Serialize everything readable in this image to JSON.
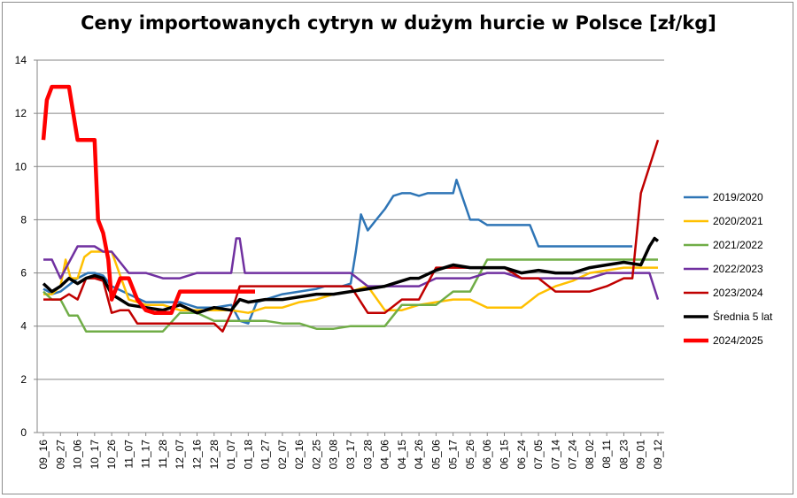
{
  "chart_data": {
    "type": "line",
    "title": "Ceny importowanych cytryn w dużym hurcie w Polsce [zł/kg]",
    "xlabel": "",
    "ylabel": "",
    "ylim": [
      0,
      14
    ],
    "yticks": [
      0,
      2,
      4,
      6,
      8,
      10,
      12,
      14
    ],
    "grid": true,
    "legend_position": "right",
    "categories": [
      "09_16",
      "09_27",
      "10_06",
      "10_17",
      "10_26",
      "11_07",
      "11_17",
      "11_28",
      "12_07",
      "12_16",
      "12_28",
      "01_07",
      "01_18",
      "01_27",
      "02_07",
      "02_16",
      "02_25",
      "03_08",
      "03_17",
      "03_28",
      "04_06",
      "04_15",
      "04_26",
      "05_06",
      "05_17",
      "05_26",
      "06_06",
      "06_15",
      "06_24",
      "07_05",
      "07_14",
      "07_24",
      "08_02",
      "08_11",
      "08_23",
      "09_01",
      "09_12"
    ],
    "series": [
      {
        "name": "2019/2020",
        "color": "#2e75b6",
        "width": 2.5,
        "x": [
          0,
          0.3,
          0.5,
          1,
          2,
          2.6,
          3,
          3.5,
          4,
          5,
          6,
          7,
          8,
          9,
          10,
          11,
          11.5,
          12,
          12.5,
          13,
          14,
          15,
          16,
          16.5,
          17,
          17.5,
          18,
          18.3,
          18.6,
          19,
          19.5,
          20,
          20.5,
          21,
          21.5,
          22,
          22.5,
          23,
          23.5,
          24,
          24.2,
          25,
          25.5,
          26,
          27,
          28,
          28.5,
          29,
          30,
          31,
          32,
          33,
          34,
          34.5
        ],
        "y": [
          5.4,
          5.3,
          5.2,
          5.3,
          5.8,
          6.0,
          6.0,
          5.9,
          5.5,
          5.2,
          4.9,
          4.9,
          4.9,
          4.7,
          4.7,
          4.8,
          4.2,
          4.1,
          4.9,
          5.0,
          5.2,
          5.3,
          5.4,
          5.5,
          5.5,
          5.5,
          5.6,
          6.8,
          8.2,
          7.6,
          8.0,
          8.4,
          8.9,
          9.0,
          9.0,
          8.9,
          9.0,
          9.0,
          9.0,
          9.0,
          9.5,
          8.0,
          8.0,
          7.8,
          7.8,
          7.8,
          7.8,
          7.0,
          7.0,
          7.0,
          7.0,
          7.0,
          7.0,
          7.0
        ]
      },
      {
        "name": "2020/2021",
        "color": "#ffc000",
        "width": 2.5,
        "x": [
          0,
          0.5,
          1,
          1.3,
          1.6,
          2,
          2.4,
          2.8,
          3,
          4,
          5,
          6,
          7,
          8,
          9,
          10,
          11,
          12,
          13,
          14,
          15,
          16,
          17,
          18,
          19,
          20,
          21,
          22,
          23,
          24,
          25,
          26,
          27,
          28,
          29,
          30,
          31,
          32,
          33,
          34,
          35,
          36
        ],
        "y": [
          5.2,
          5.2,
          5.5,
          6.5,
          5.8,
          5.8,
          6.6,
          6.8,
          6.8,
          6.8,
          5.0,
          4.8,
          4.8,
          4.6,
          4.6,
          4.6,
          4.6,
          4.5,
          4.7,
          4.7,
          4.9,
          5.0,
          5.2,
          5.3,
          5.5,
          4.6,
          4.6,
          4.8,
          4.9,
          5.0,
          5.0,
          4.7,
          4.7,
          4.7,
          5.2,
          5.5,
          5.7,
          6.0,
          6.1,
          6.2,
          6.2,
          6.2
        ]
      },
      {
        "name": "2021/2022",
        "color": "#70ad47",
        "width": 2.5,
        "x": [
          0,
          0.5,
          1,
          1.5,
          2,
          2.5,
          3,
          4,
          5,
          6,
          7,
          8,
          9,
          10,
          11,
          12,
          13,
          14,
          15,
          16,
          17,
          18,
          19,
          20,
          21,
          22,
          23,
          24,
          25,
          26,
          27,
          28,
          29,
          30,
          31,
          32,
          33,
          34,
          35,
          36
        ],
        "y": [
          5.3,
          5.0,
          5.0,
          4.4,
          4.4,
          3.8,
          3.8,
          3.8,
          3.8,
          3.8,
          3.8,
          4.5,
          4.5,
          4.2,
          4.2,
          4.2,
          4.2,
          4.1,
          4.1,
          3.9,
          3.9,
          4.0,
          4.0,
          4.0,
          4.8,
          4.8,
          4.8,
          5.3,
          5.3,
          6.5,
          6.5,
          6.5,
          6.5,
          6.5,
          6.5,
          6.5,
          6.5,
          6.5,
          6.5,
          6.5
        ]
      },
      {
        "name": "2022/2023",
        "color": "#7030a0",
        "width": 2.5,
        "x": [
          0,
          0.5,
          1,
          2,
          2.5,
          3,
          3.5,
          4,
          5,
          6,
          7,
          7.5,
          8,
          9,
          10,
          11,
          11.3,
          11.5,
          11.8,
          12,
          13,
          14,
          15,
          16,
          17,
          18,
          19,
          20,
          21,
          22,
          23,
          24,
          25,
          26,
          27,
          28,
          29,
          30,
          31,
          32,
          33,
          34,
          35,
          35.5,
          36
        ],
        "y": [
          6.5,
          6.5,
          5.8,
          7.0,
          7.0,
          7.0,
          6.8,
          6.8,
          6.0,
          6.0,
          5.8,
          5.8,
          5.8,
          6.0,
          6.0,
          6.0,
          7.3,
          7.3,
          6.0,
          6.0,
          6.0,
          6.0,
          6.0,
          6.0,
          6.0,
          6.0,
          5.5,
          5.5,
          5.5,
          5.5,
          5.8,
          5.8,
          5.8,
          6.0,
          6.0,
          5.8,
          5.8,
          5.8,
          5.8,
          5.8,
          6.0,
          6.0,
          6.0,
          6.0,
          5.0
        ]
      },
      {
        "name": "2023/2024",
        "color": "#c00000",
        "width": 2.5,
        "x": [
          0,
          0.5,
          1,
          1.5,
          2,
          2.5,
          3,
          3.5,
          4,
          4.5,
          5,
          5.5,
          6,
          7,
          8,
          9,
          10,
          10.5,
          11,
          11.5,
          12,
          13,
          14,
          15,
          16,
          17,
          18,
          19,
          20,
          21,
          22,
          23,
          24,
          25,
          26,
          27,
          28,
          29,
          30,
          31,
          32,
          33,
          34,
          34.5,
          35,
          35.5,
          36
        ],
        "y": [
          5.0,
          5.0,
          5.0,
          5.2,
          5.0,
          5.8,
          5.8,
          5.7,
          4.5,
          4.6,
          4.6,
          4.1,
          4.1,
          4.1,
          4.1,
          4.1,
          4.1,
          3.8,
          4.5,
          5.5,
          5.5,
          5.5,
          5.5,
          5.5,
          5.5,
          5.5,
          5.5,
          4.5,
          4.5,
          5.0,
          5.0,
          6.2,
          6.2,
          6.2,
          6.2,
          6.2,
          5.8,
          5.8,
          5.3,
          5.3,
          5.3,
          5.5,
          5.8,
          5.8,
          9.0,
          10.0,
          11.0
        ]
      },
      {
        "name": "Średnia 5 lat",
        "color": "#000000",
        "width": 3.5,
        "x": [
          0,
          0.5,
          1,
          1.5,
          2,
          2.5,
          3,
          3.5,
          4,
          4.5,
          5,
          6,
          7,
          8,
          9,
          10,
          11,
          11.5,
          12,
          13,
          14,
          15,
          16,
          17,
          18,
          19,
          20,
          21,
          21.5,
          22,
          23,
          24,
          25,
          26,
          27,
          28,
          29,
          30,
          31,
          32,
          33,
          34,
          35,
          35.5,
          35.8,
          36
        ],
        "y": [
          5.6,
          5.3,
          5.5,
          5.8,
          5.6,
          5.8,
          5.9,
          5.8,
          5.2,
          5.0,
          4.8,
          4.7,
          4.6,
          4.8,
          4.5,
          4.7,
          4.6,
          5.0,
          4.9,
          5.0,
          5.0,
          5.1,
          5.2,
          5.2,
          5.3,
          5.4,
          5.5,
          5.7,
          5.8,
          5.8,
          6.1,
          6.3,
          6.2,
          6.2,
          6.2,
          6.0,
          6.1,
          6.0,
          6.0,
          6.2,
          6.3,
          6.4,
          6.3,
          7.0,
          7.3,
          7.2
        ]
      },
      {
        "name": "2024/2025",
        "color": "#ff0000",
        "width": 4.5,
        "x": [
          0,
          0.2,
          0.5,
          1,
          1.5,
          2,
          2.5,
          3,
          3.2,
          3.5,
          3.8,
          4,
          4.5,
          5,
          5.5,
          6,
          6.5,
          7,
          7.5,
          8,
          9,
          10,
          11,
          12,
          12.4
        ],
        "y": [
          11.0,
          12.5,
          13.0,
          13.0,
          13.0,
          11.0,
          11.0,
          11.0,
          8.0,
          7.5,
          6.5,
          5.0,
          5.8,
          5.8,
          5.0,
          4.6,
          4.5,
          4.5,
          4.5,
          5.3,
          5.3,
          5.3,
          5.3,
          5.3,
          5.3
        ]
      }
    ]
  }
}
